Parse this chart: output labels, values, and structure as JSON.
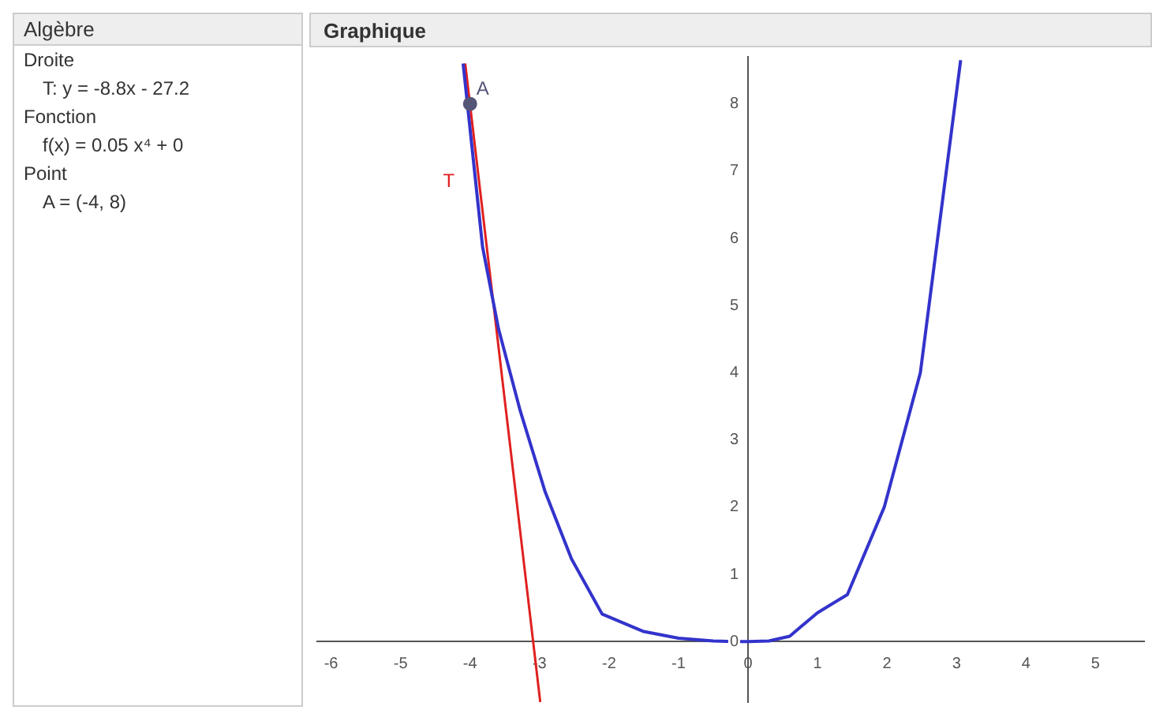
{
  "chart_data": {
    "type": "line",
    "annotations": [
      "Algèbre",
      "Droite",
      "T: y = -8.8x - 27.2",
      "Fonction",
      "f(x) = 0.05 x⁴ + 0",
      "Point",
      "A = (-4, 8)",
      "Graphique"
    ],
    "series": [
      {
        "color": "#3333cc",
        "x": [
          -4.1,
          -3.82,
          -3.59,
          -3.28,
          -2.92,
          -2.54,
          -2.1,
          -1.5,
          -1,
          -0.5,
          -0.2,
          0,
          0.3,
          0.6,
          1,
          1.43,
          1.96,
          2.48,
          2.81,
          3.06
        ],
        "values": [
          8.6,
          5.87,
          4.65,
          3.44,
          2.23,
          1.23,
          0.41,
          0.15,
          0.05,
          0.01,
          0,
          0,
          0.01,
          0.08,
          0.43,
          0.7,
          2,
          4,
          6.65,
          8.65
        ]
      },
      {
        "type": "line",
        "name": "T",
        "color": "#e02020",
        "x": [
          -4.07,
          -2.99
        ],
        "values": [
          8.6,
          -0.9
        ]
      },
      {
        "type": "scatter",
        "name": "A",
        "color": "#555577",
        "x": [
          -4
        ],
        "values": [
          8
        ]
      }
    ],
    "xlim": [
      -6.2,
      5.7
    ],
    "ylim": [
      -0.9,
      8.7
    ],
    "xticks": [
      -6,
      -5,
      -4,
      -3,
      -2,
      -1,
      0,
      1,
      2,
      3,
      4,
      5
    ],
    "yticks": [
      0,
      1,
      2,
      3,
      4,
      5,
      6,
      7,
      8
    ],
    "grid": false,
    "legend": false
  }
}
